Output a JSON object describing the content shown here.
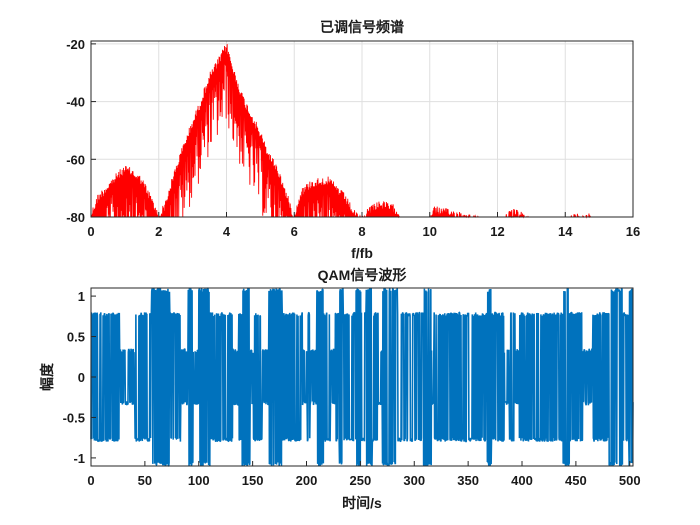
{
  "chart_data": [
    {
      "type": "line",
      "title": "已调信号频谱",
      "xlabel": "f/fb",
      "ylabel": "",
      "xlim": [
        0,
        16
      ],
      "ylim": [
        -80,
        -19
      ],
      "x_ticks": [
        "0",
        "2",
        "4",
        "6",
        "8",
        "10",
        "12",
        "14",
        "16"
      ],
      "y_ticks": [
        "-20",
        "-40",
        "-60",
        "-80"
      ],
      "grid": true,
      "series": [
        {
          "color": "#ff0000",
          "x": [
            0,
            0.2,
            0.5,
            0.8,
            1.0,
            1.2,
            1.5,
            1.8,
            2.0,
            2.2,
            2.5,
            2.8,
            3.0,
            3.2,
            3.5,
            3.8,
            4.0,
            4.2,
            4.5,
            4.8,
            5.0,
            5.2,
            5.5,
            5.8,
            6.0,
            6.2,
            6.5,
            6.8,
            7.0,
            7.2,
            7.5,
            7.8,
            8.0,
            8.2,
            8.5,
            8.8,
            9.0,
            9.2,
            9.5,
            10.0,
            10.1,
            10.5,
            11.0,
            11.5,
            12.0,
            12.5,
            13.0,
            13.5,
            14.0,
            14.5,
            15.0,
            16.0
          ],
          "values": [
            -78,
            -72,
            -68,
            -64,
            -62,
            -63,
            -66,
            -73,
            -79,
            -74,
            -62,
            -52,
            -46,
            -40,
            -30,
            -24,
            -19,
            -28,
            -38,
            -45,
            -50,
            -56,
            -62,
            -72,
            -79,
            -70,
            -67,
            -66,
            -66,
            -68,
            -72,
            -78,
            -80,
            -76,
            -74,
            -75,
            -76,
            -80,
            -80,
            -80,
            -76,
            -77,
            -78,
            -80,
            -80,
            -77,
            -80,
            -80,
            -80,
            -78,
            -80,
            -80
          ]
        }
      ]
    },
    {
      "type": "line",
      "title": "QAM信号波形",
      "xlabel": "时间/s",
      "ylabel": "幅度",
      "xlim": [
        0,
        503
      ],
      "ylim": [
        -1.1,
        1.1
      ],
      "x_ticks": [
        "0",
        "50",
        "100",
        "150",
        "200",
        "250",
        "300",
        "350",
        "400",
        "450",
        "500"
      ],
      "y_ticks": [
        "1",
        "0.5",
        "0",
        "-0.5",
        "-1"
      ],
      "grid": false,
      "series": [
        {
          "color": "#0072bd",
          "amplitude_levels": [
            -1.1,
            -0.8,
            -0.35,
            0.35,
            0.8,
            1.1
          ]
        }
      ]
    }
  ]
}
